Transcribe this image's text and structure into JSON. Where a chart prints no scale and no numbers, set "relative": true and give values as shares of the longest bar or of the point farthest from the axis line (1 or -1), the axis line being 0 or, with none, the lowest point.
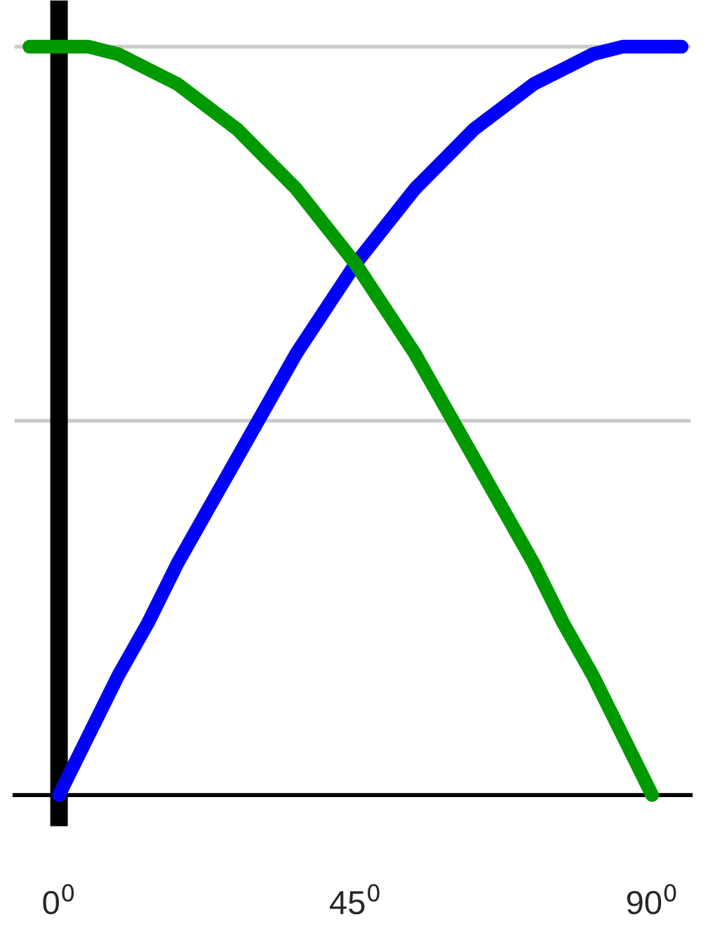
{
  "chart_data": {
    "type": "line",
    "relative": true,
    "categories": [
      null,
      "0$^{0}$",
      null,
      null,
      null,
      null,
      null,
      null,
      null,
      null,
      null,
      "45$^{0}$",
      null,
      null,
      null,
      null,
      null,
      null,
      null,
      null,
      null,
      "90$^{0}$",
      null
    ],
    "series": [
      {
        "color": "#0000ff",
        "values": [
          null,
          0,
          0.08,
          0.16,
          0.23,
          0.31,
          0.38,
          0.45,
          0.52,
          0.59,
          0.65,
          0.71,
          0.76,
          0.81,
          0.85,
          0.89,
          0.92,
          0.95,
          0.97,
          0.99,
          1,
          1,
          1
        ]
      },
      {
        "color": "#009900",
        "values": [
          1,
          1,
          1,
          0.99,
          0.97,
          0.95,
          0.92,
          0.89,
          0.85,
          0.81,
          0.76,
          0.71,
          0.65,
          0.59,
          0.52,
          0.45,
          0.38,
          0.31,
          0.23,
          0.16,
          0.08,
          0,
          null
        ]
      }
    ],
    "ref_lines": [
      {
        "axis": "y",
        "value": 0.5,
        "color": "#cccccc"
      },
      {
        "axis": "y",
        "value": 1,
        "color": "#cccccc"
      }
    ],
    "marker": "none",
    "line_style": "solid"
  }
}
